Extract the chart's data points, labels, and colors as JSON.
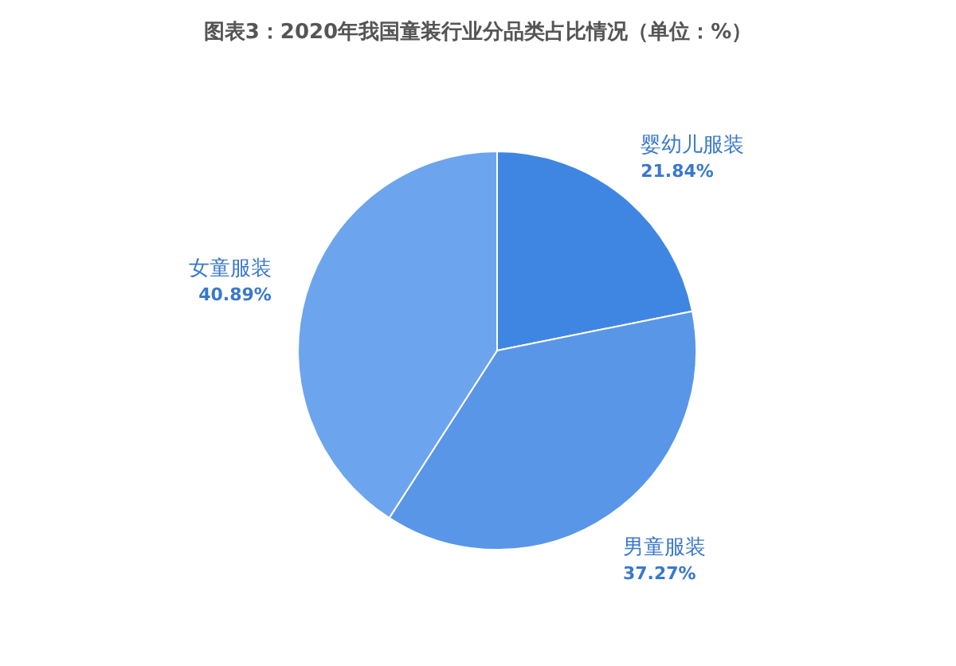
{
  "chart_data": {
    "type": "pie",
    "title": "图表3：2020年我国童装行业分品类占比情况（单位：%）",
    "categories": [
      "婴幼儿服装",
      "男童服装",
      "女童服装"
    ],
    "values": [
      21.84,
      37.27,
      40.89
    ],
    "colors": [
      "#3f86e2",
      "#5996e8",
      "#6ca5ed"
    ],
    "value_labels": [
      "21.84%",
      "37.27%",
      "40.89%"
    ]
  }
}
